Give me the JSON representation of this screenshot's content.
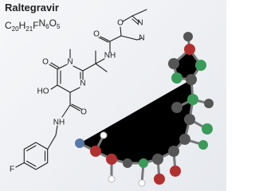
{
  "title": "Raltegravir",
  "formula": [
    {
      "symbol": "C",
      "count": "20"
    },
    {
      "symbol": "H",
      "count": "21"
    },
    {
      "symbol": "F"
    },
    {
      "symbol": "N",
      "count": "6"
    },
    {
      "symbol": "O",
      "count": "5"
    }
  ],
  "atoms": [
    "O",
    "N",
    "N",
    "O",
    "NH",
    "N",
    "O",
    "N",
    "HO",
    "O",
    "NH",
    "F"
  ]
}
